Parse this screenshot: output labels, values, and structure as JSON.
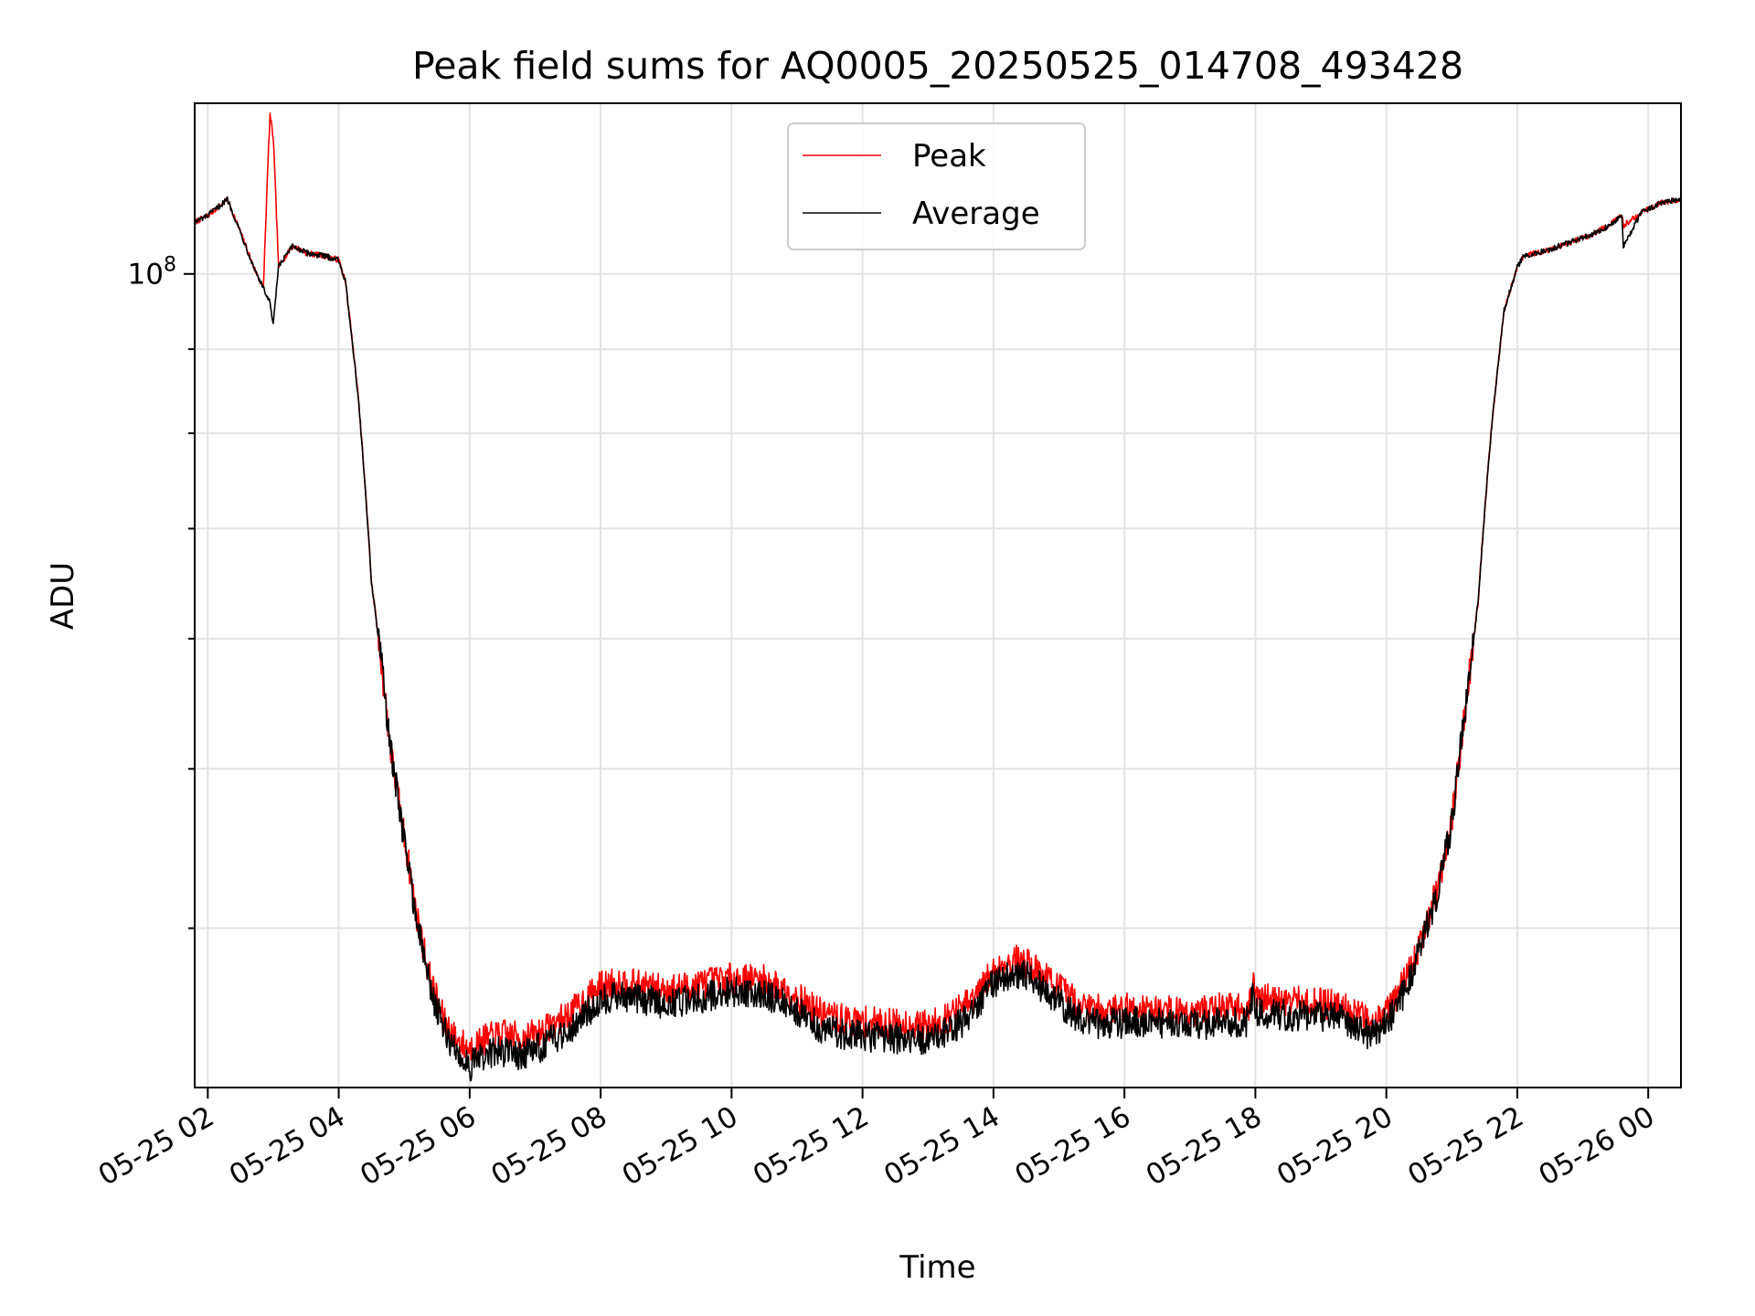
{
  "chart_data": {
    "type": "line",
    "title": "Peak field sums for AQ0005_20250525_014708_493428",
    "xlabel": "Time",
    "ylabel": "ADU",
    "y_scale": "log",
    "y_major_tick_label": "10",
    "y_major_tick_exponent": "8",
    "y_major_tick_value": 100000000,
    "ylim": [
      32000000,
      127000000
    ],
    "x_tick_labels": [
      "05-25 02",
      "05-25 04",
      "05-25 06",
      "05-25 08",
      "05-25 10",
      "05-25 12",
      "05-25 14",
      "05-25 16",
      "05-25 18",
      "05-25 20",
      "05-25 22",
      "05-26 00"
    ],
    "x_tick_hours": [
      2,
      4,
      6,
      8,
      10,
      12,
      14,
      16,
      18,
      20,
      22,
      24
    ],
    "xlim_hours": [
      1.8,
      24.5
    ],
    "grid": true,
    "legend_position": "upper center",
    "series": [
      {
        "name": "Peak",
        "color": "#ff0000",
        "x_hours": [
          1.8,
          2.0,
          2.3,
          2.5,
          2.7,
          2.85,
          2.95,
          3.0,
          3.08,
          3.15,
          3.3,
          3.5,
          3.8,
          4.0,
          4.1,
          4.3,
          4.5,
          4.8,
          5.0,
          5.2,
          5.4,
          5.6,
          5.8,
          6.0,
          6.2,
          6.5,
          6.8,
          7.1,
          7.5,
          7.8,
          8.0,
          8.3,
          8.6,
          9.0,
          9.5,
          10.0,
          10.5,
          11.0,
          11.3,
          11.7,
          12.0,
          12.5,
          13.0,
          13.3,
          13.7,
          14.0,
          14.3,
          14.5,
          14.8,
          15.1,
          15.4,
          15.8,
          16.2,
          16.6,
          17.0,
          17.3,
          17.6,
          17.9,
          17.95,
          18.0,
          18.2,
          18.6,
          19.0,
          19.3,
          19.5,
          19.7,
          19.9,
          20.1,
          20.3,
          20.5,
          20.8,
          21.0,
          21.2,
          21.4,
          21.6,
          21.8,
          22.0,
          22.1,
          22.5,
          22.8,
          23.1,
          23.4,
          23.6,
          23.62,
          23.9,
          24.2,
          24.5
        ],
        "y": [
          107500000,
          108500000,
          111000000,
          106000000,
          101000000,
          98000000,
          125000000,
          121000000,
          101000000,
          102000000,
          104000000,
          103000000,
          102500000,
          102000000,
          99000000,
          84000000,
          65000000,
          51000000,
          45500000,
          40500000,
          37200000,
          35200000,
          34200000,
          33800000,
          34200000,
          34500000,
          34300000,
          34600000,
          35400000,
          36300000,
          36900000,
          37100000,
          36900000,
          36700000,
          37000000,
          37300000,
          37200000,
          36400000,
          35600000,
          35200000,
          35100000,
          35000000,
          34900000,
          35300000,
          36200000,
          37700000,
          38300000,
          38100000,
          37400000,
          36500000,
          35800000,
          35700000,
          35800000,
          35700000,
          35600000,
          35700000,
          35800000,
          35800000,
          37100000,
          36300000,
          36200000,
          36100000,
          36000000,
          36000000,
          35600000,
          35200000,
          35300000,
          36100000,
          37200000,
          39000000,
          42500000,
          46500000,
          54000000,
          63000000,
          80000000,
          95000000,
          101000000,
          102500000,
          103500000,
          104500000,
          105500000,
          107000000,
          108500000,
          107000000,
          109000000,
          110500000,
          111000000
        ]
      },
      {
        "name": "Average",
        "color": "#000000",
        "x_hours": [
          1.8,
          2.0,
          2.3,
          2.5,
          2.7,
          2.85,
          2.95,
          3.0,
          3.08,
          3.15,
          3.3,
          3.5,
          3.8,
          4.0,
          4.1,
          4.3,
          4.5,
          4.8,
          5.0,
          5.2,
          5.4,
          5.6,
          5.8,
          6.0,
          6.2,
          6.5,
          6.8,
          7.1,
          7.5,
          7.8,
          8.0,
          8.3,
          8.6,
          9.0,
          9.5,
          10.0,
          10.5,
          11.0,
          11.3,
          11.7,
          12.0,
          12.5,
          13.0,
          13.3,
          13.7,
          14.0,
          14.3,
          14.5,
          14.8,
          15.1,
          15.4,
          15.8,
          16.2,
          16.6,
          17.0,
          17.3,
          17.6,
          17.9,
          17.95,
          18.0,
          18.2,
          18.6,
          19.0,
          19.3,
          19.5,
          19.7,
          19.9,
          20.1,
          20.3,
          20.5,
          20.8,
          21.0,
          21.2,
          21.4,
          21.6,
          21.8,
          22.0,
          22.1,
          22.5,
          22.8,
          23.1,
          23.4,
          23.6,
          23.62,
          23.9,
          24.2,
          24.5
        ],
        "y": [
          107500000,
          108500000,
          111000000,
          106000000,
          101000000,
          98000000,
          96000000,
          93000000,
          101000000,
          102000000,
          104000000,
          103000000,
          102500000,
          102000000,
          99000000,
          84000000,
          65000000,
          51000000,
          45300000,
          40200000,
          36800000,
          34700000,
          33600000,
          33000000,
          33400000,
          33700000,
          33500000,
          33900000,
          34700000,
          35600000,
          36200000,
          36400000,
          36200000,
          36000000,
          36300000,
          36600000,
          36500000,
          35700000,
          34900000,
          34500000,
          34400000,
          34300000,
          34200000,
          34600000,
          35500000,
          37000000,
          37600000,
          37400000,
          36700000,
          35800000,
          35100000,
          35000000,
          35100000,
          35000000,
          34900000,
          35000000,
          35100000,
          35100000,
          36400000,
          35600000,
          35500000,
          35400000,
          35300000,
          35300000,
          34900000,
          34500000,
          34700000,
          35500000,
          36700000,
          38600000,
          42300000,
          46300000,
          54000000,
          63000000,
          80000000,
          95000000,
          101000000,
          102500000,
          103500000,
          104500000,
          105500000,
          107000000,
          108500000,
          104000000,
          109000000,
          110500000,
          111000000
        ]
      }
    ]
  }
}
